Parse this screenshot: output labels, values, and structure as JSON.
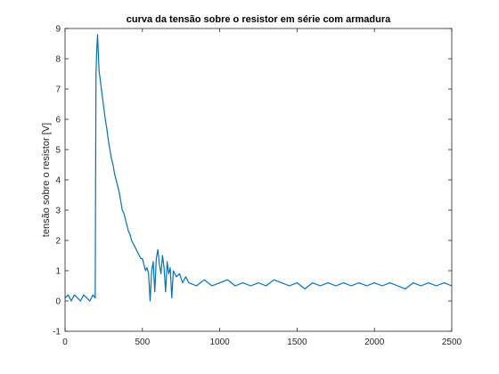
{
  "chart_data": {
    "type": "line",
    "title": "curva da tensão sobre o resistor em série com armadura",
    "xlabel": "",
    "ylabel": "tensão sobre o resistor [V]",
    "xlim": [
      0,
      2500
    ],
    "ylim": [
      -1,
      9
    ],
    "xticks": [
      0,
      500,
      1000,
      1500,
      2000,
      2500
    ],
    "yticks": [
      -1,
      0,
      1,
      2,
      3,
      4,
      5,
      6,
      7,
      8,
      9
    ],
    "grid": false,
    "legend": "none",
    "line_color": "#0072BD",
    "series": [
      {
        "x": [
          0,
          20,
          40,
          60,
          80,
          100,
          120,
          140,
          160,
          180,
          195,
          200,
          205,
          210,
          215,
          220,
          230,
          240,
          250,
          260,
          270,
          280,
          290,
          300,
          310,
          320,
          330,
          340,
          350,
          360,
          370,
          380,
          390,
          400,
          410,
          420,
          430,
          440,
          450,
          460,
          470,
          480,
          490,
          500,
          510,
          520,
          530,
          540,
          550,
          560,
          570,
          580,
          590,
          600,
          610,
          620,
          630,
          640,
          650,
          660,
          670,
          680,
          690,
          700,
          720,
          740,
          760,
          780,
          800,
          850,
          900,
          950,
          1000,
          1050,
          1100,
          1150,
          1200,
          1250,
          1300,
          1350,
          1400,
          1450,
          1500,
          1550,
          1600,
          1650,
          1700,
          1750,
          1800,
          1850,
          1900,
          1950,
          2000,
          2050,
          2100,
          2150,
          2200,
          2250,
          2300,
          2350,
          2400,
          2450,
          2500
        ],
        "y": [
          0.1,
          0.2,
          0.0,
          0.2,
          0.1,
          0.0,
          0.2,
          0.1,
          0.0,
          0.2,
          0.1,
          7.5,
          8.3,
          8.8,
          8.2,
          7.6,
          7.2,
          6.8,
          6.4,
          6.0,
          5.7,
          5.3,
          5.0,
          4.7,
          4.5,
          4.2,
          4.0,
          3.8,
          3.6,
          3.3,
          3.0,
          2.9,
          2.7,
          2.5,
          2.3,
          2.2,
          2.0,
          1.9,
          1.8,
          1.7,
          1.6,
          1.5,
          1.4,
          1.4,
          1.2,
          1.0,
          1.1,
          0.9,
          0.0,
          1.0,
          1.3,
          0.3,
          1.4,
          1.7,
          1.2,
          0.9,
          1.5,
          1.1,
          0.3,
          1.3,
          0.9,
          1.1,
          0.1,
          1.0,
          0.8,
          0.9,
          0.6,
          0.8,
          0.6,
          0.5,
          0.7,
          0.5,
          0.6,
          0.7,
          0.5,
          0.6,
          0.5,
          0.6,
          0.5,
          0.7,
          0.6,
          0.5,
          0.6,
          0.4,
          0.6,
          0.5,
          0.6,
          0.5,
          0.6,
          0.5,
          0.6,
          0.5,
          0.6,
          0.5,
          0.6,
          0.5,
          0.4,
          0.6,
          0.5,
          0.6,
          0.5,
          0.6,
          0.5
        ]
      }
    ]
  }
}
